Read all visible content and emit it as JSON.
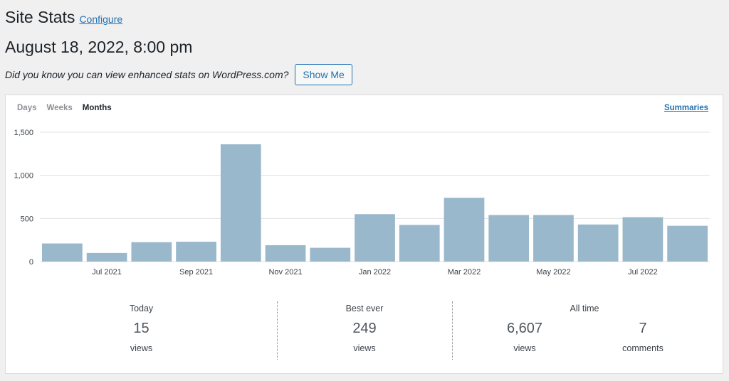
{
  "header": {
    "title": "Site Stats",
    "configure_label": "Configure",
    "datetime": "August 18, 2022, 8:00 pm"
  },
  "promo": {
    "text": "Did you know you can view enhanced stats on WordPress.com?",
    "button_label": "Show Me"
  },
  "tabs": {
    "days": "Days",
    "weeks": "Weeks",
    "months": "Months",
    "active": "months",
    "summaries_label": "Summaries"
  },
  "chart_data": {
    "type": "bar",
    "categories": [
      "Jun 2021",
      "Jul 2021",
      "Aug 2021",
      "Sep 2021",
      "Oct 2021",
      "Nov 2021",
      "Dec 2021",
      "Jan 2022",
      "Feb 2022",
      "Mar 2022",
      "Apr 2022",
      "May 2022",
      "Jun 2022",
      "Jul 2022",
      "Aug 2022"
    ],
    "values": [
      210,
      100,
      225,
      230,
      1360,
      190,
      160,
      550,
      425,
      740,
      540,
      540,
      430,
      515,
      415
    ],
    "x_tick_labels": [
      "",
      "Jul 2021",
      "",
      "Sep 2021",
      "",
      "Nov 2021",
      "",
      "Jan 2022",
      "",
      "Mar 2022",
      "",
      "May 2022",
      "",
      "Jul 2022",
      ""
    ],
    "y_ticks": [
      "0",
      "500",
      "1,000",
      "1,500"
    ],
    "y_tick_values": [
      0,
      500,
      1000,
      1500
    ],
    "ylim": [
      0,
      1500
    ],
    "grid": true,
    "bar_color": "#99b8cb"
  },
  "stats": {
    "today": {
      "label": "Today",
      "value": "15",
      "unit": "views"
    },
    "best_ever": {
      "label": "Best ever",
      "value": "249",
      "unit": "views"
    },
    "all_time": {
      "label": "All time",
      "views_value": "6,607",
      "views_unit": "views",
      "comments_value": "7",
      "comments_unit": "comments"
    }
  }
}
